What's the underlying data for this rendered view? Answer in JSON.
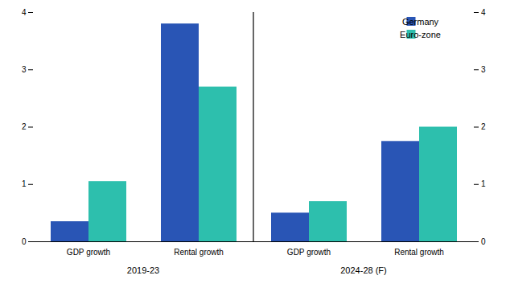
{
  "chart_data": {
    "type": "bar",
    "categories": [
      "GDP growth",
      "Rental growth",
      "GDP growth",
      "Rental growth"
    ],
    "category_groups": [
      "2019-23",
      "2019-23",
      "2024-28 (F)",
      "2024-28 (F)"
    ],
    "series": [
      {
        "name": "Germany",
        "color": "#2955b5",
        "values": [
          0.35,
          3.8,
          0.5,
          1.75
        ]
      },
      {
        "name": "Euro-zone",
        "color": "#2dbfad",
        "values": [
          1.05,
          2.7,
          0.7,
          2.0
        ]
      }
    ],
    "ylim": [
      0,
      4
    ],
    "yticks": [
      0,
      1,
      2,
      3,
      4
    ],
    "y2lim": [
      0,
      4
    ],
    "y2ticks": [
      0,
      1,
      2,
      3,
      4
    ],
    "legend": "upper right",
    "grid": false
  }
}
